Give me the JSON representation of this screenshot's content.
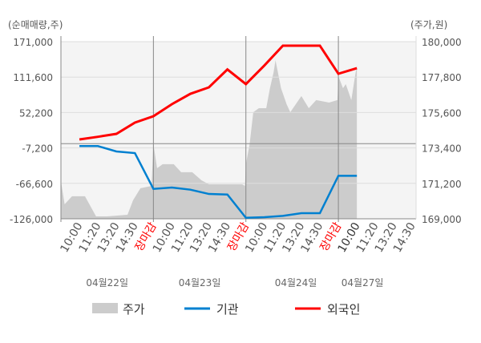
{
  "chart_data": {
    "type": "line",
    "left_axis_title": "(순매매량,주)",
    "right_axis_title": "(주가,원)",
    "left_ticks": [
      "171,000",
      "111,600",
      "52,200",
      "-7,200",
      "-66,600",
      "-126,000"
    ],
    "left_range": [
      -126000,
      171000
    ],
    "right_ticks": [
      "180,000",
      "177,800",
      "175,600",
      "173,400",
      "171,200",
      "169,000"
    ],
    "right_range": [
      169000,
      180000
    ],
    "x_labels": [
      "10:00",
      "11:20",
      "13:20",
      "14:30",
      "장마감",
      "10:00",
      "11:20",
      "13:20",
      "14:30",
      "장마감",
      "10:00",
      "11:20",
      "13:20",
      "14:30",
      "장마감",
      "10:00",
      "11:20",
      "13:20",
      "14:30"
    ],
    "x_label_colors": [
      "#555555",
      "#555555",
      "#555555",
      "#555555",
      "#ff0000",
      "#555555",
      "#555555",
      "#555555",
      "#555555",
      "#ff0000",
      "#555555",
      "#555555",
      "#555555",
      "#555555",
      "#ff0000",
      "#333333",
      "#555555",
      "#555555",
      "#555555"
    ],
    "x_range": [
      0,
      19.2
    ],
    "day_labels": [
      {
        "label": "04월22일",
        "slot": 2.5
      },
      {
        "label": "04월23일",
        "slot": 7.5
      },
      {
        "label": "04월24일",
        "slot": 12.7
      },
      {
        "label": "04월27일",
        "slot": 16.3
      }
    ],
    "series": [
      {
        "name": "주가",
        "color": "#cccccc",
        "axis": "right",
        "points": [
          [
            0,
            171340
          ],
          [
            0.2,
            169900
          ],
          [
            0.6,
            170400
          ],
          [
            1.3,
            170400
          ],
          [
            1.9,
            169150
          ],
          [
            2.5,
            169150
          ],
          [
            3.6,
            169250
          ],
          [
            3.9,
            170150
          ],
          [
            4.3,
            170900
          ],
          [
            4.9,
            171040
          ],
          [
            5.0,
            173630
          ],
          [
            5.2,
            172140
          ],
          [
            5.5,
            172390
          ],
          [
            6.1,
            172390
          ],
          [
            6.5,
            171890
          ],
          [
            7.1,
            171890
          ],
          [
            7.6,
            171390
          ],
          [
            8.0,
            171140
          ],
          [
            9.8,
            171140
          ],
          [
            9.95,
            171040
          ],
          [
            10.0,
            172390
          ],
          [
            10.2,
            173630
          ],
          [
            10.4,
            175620
          ],
          [
            10.7,
            175870
          ],
          [
            11.1,
            175870
          ],
          [
            11.3,
            177110
          ],
          [
            11.5,
            178110
          ],
          [
            11.6,
            178850
          ],
          [
            11.9,
            177110
          ],
          [
            12.2,
            176120
          ],
          [
            12.4,
            175620
          ],
          [
            13.0,
            176620
          ],
          [
            13.4,
            175870
          ],
          [
            13.8,
            176370
          ],
          [
            14.5,
            176220
          ],
          [
            14.95,
            176370
          ],
          [
            15.0,
            177860
          ],
          [
            15.25,
            177110
          ],
          [
            15.4,
            177360
          ],
          [
            15.7,
            176370
          ],
          [
            15.9,
            177860
          ],
          [
            16.0,
            178500
          ]
        ]
      },
      {
        "name": "기관",
        "color": "#0080d0",
        "axis": "left",
        "points": [
          [
            1,
            -4100
          ],
          [
            2,
            -4100
          ],
          [
            3,
            -13100
          ],
          [
            4,
            -15800
          ],
          [
            5,
            -75900
          ],
          [
            6,
            -73600
          ],
          [
            7,
            -77200
          ],
          [
            8,
            -84400
          ],
          [
            9,
            -85300
          ],
          [
            10,
            -124300
          ],
          [
            11,
            -123300
          ],
          [
            12,
            -121100
          ],
          [
            13,
            -116600
          ],
          [
            14,
            -116600
          ],
          [
            15,
            -53900
          ],
          [
            16,
            -53900
          ]
        ]
      },
      {
        "name": "외국인",
        "color": "#ff0000",
        "axis": "left",
        "points": [
          [
            1,
            7000
          ],
          [
            2,
            11500
          ],
          [
            3,
            16400
          ],
          [
            4,
            35300
          ],
          [
            5,
            46000
          ],
          [
            6,
            66200
          ],
          [
            7,
            83600
          ],
          [
            8,
            94400
          ],
          [
            9,
            124400
          ],
          [
            10,
            99800
          ],
          [
            11,
            131100
          ],
          [
            12,
            164300
          ],
          [
            13,
            164300
          ],
          [
            14,
            164300
          ],
          [
            15,
            117200
          ],
          [
            16,
            126600
          ]
        ]
      }
    ]
  }
}
